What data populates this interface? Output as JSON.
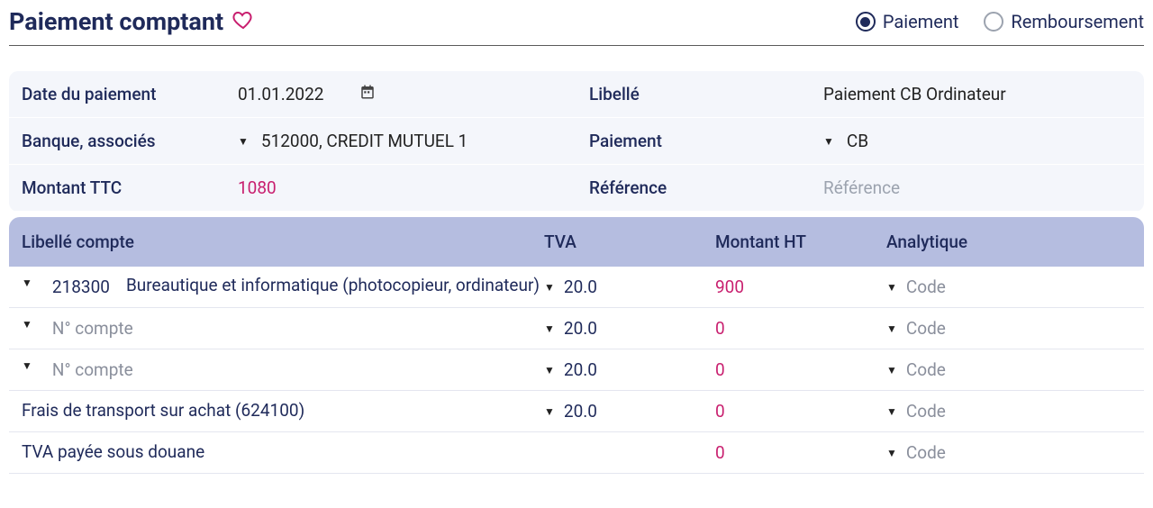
{
  "header": {
    "title": "Paiement comptant",
    "radios": {
      "option1": "Paiement",
      "option2": "Remboursement",
      "selected": "option1"
    }
  },
  "form": {
    "row1": {
      "label_left": "Date du paiement",
      "value_left": "01.01.2022",
      "label_right": "Libellé",
      "value_right": "Paiement CB Ordinateur"
    },
    "row2": {
      "label_left": "Banque, associés",
      "value_left": "512000, CREDIT MUTUEL 1",
      "label_right": "Paiement",
      "value_right": "CB"
    },
    "row3": {
      "label_left": "Montant TTC",
      "value_left": "1080",
      "label_right": "Référence",
      "value_right_placeholder": "Référence"
    }
  },
  "table": {
    "headers": {
      "c1": "Libellé compte",
      "c2": "TVA",
      "c3": "Montant HT",
      "c4": "Analytique"
    },
    "rows": [
      {
        "account_code": "218300",
        "account_label": "Bureautique et informatique (photocopieur, ordinateur)",
        "account_placeholder": "",
        "tva": "20.0",
        "show_tva_caret": true,
        "montant": "900",
        "analytique_placeholder": "Code"
      },
      {
        "account_code": "",
        "account_label": "",
        "account_placeholder": "N° compte",
        "tva": "20.0",
        "show_tva_caret": true,
        "montant": "0",
        "analytique_placeholder": "Code"
      },
      {
        "account_code": "",
        "account_label": "",
        "account_placeholder": "N° compte",
        "tva": "20.0",
        "show_tva_caret": true,
        "montant": "0",
        "analytique_placeholder": "Code"
      },
      {
        "account_code": "",
        "account_label": "Frais de transport sur achat (624100)",
        "account_placeholder": "",
        "tva": "20.0",
        "show_tva_caret": true,
        "montant": "0",
        "analytique_placeholder": "Code",
        "no_caret_account": true
      },
      {
        "account_code": "",
        "account_label": "TVA payée sous douane",
        "account_placeholder": "",
        "tva": "",
        "show_tva_caret": false,
        "montant": "0",
        "analytique_placeholder": "Code",
        "no_caret_account": true
      }
    ]
  },
  "colors": {
    "primary": "#1f2a5a",
    "accent_pink": "#c81e6e",
    "header_band": "#b5bde0",
    "row_bg": "#f4f6fb",
    "placeholder": "#9ca3af"
  }
}
